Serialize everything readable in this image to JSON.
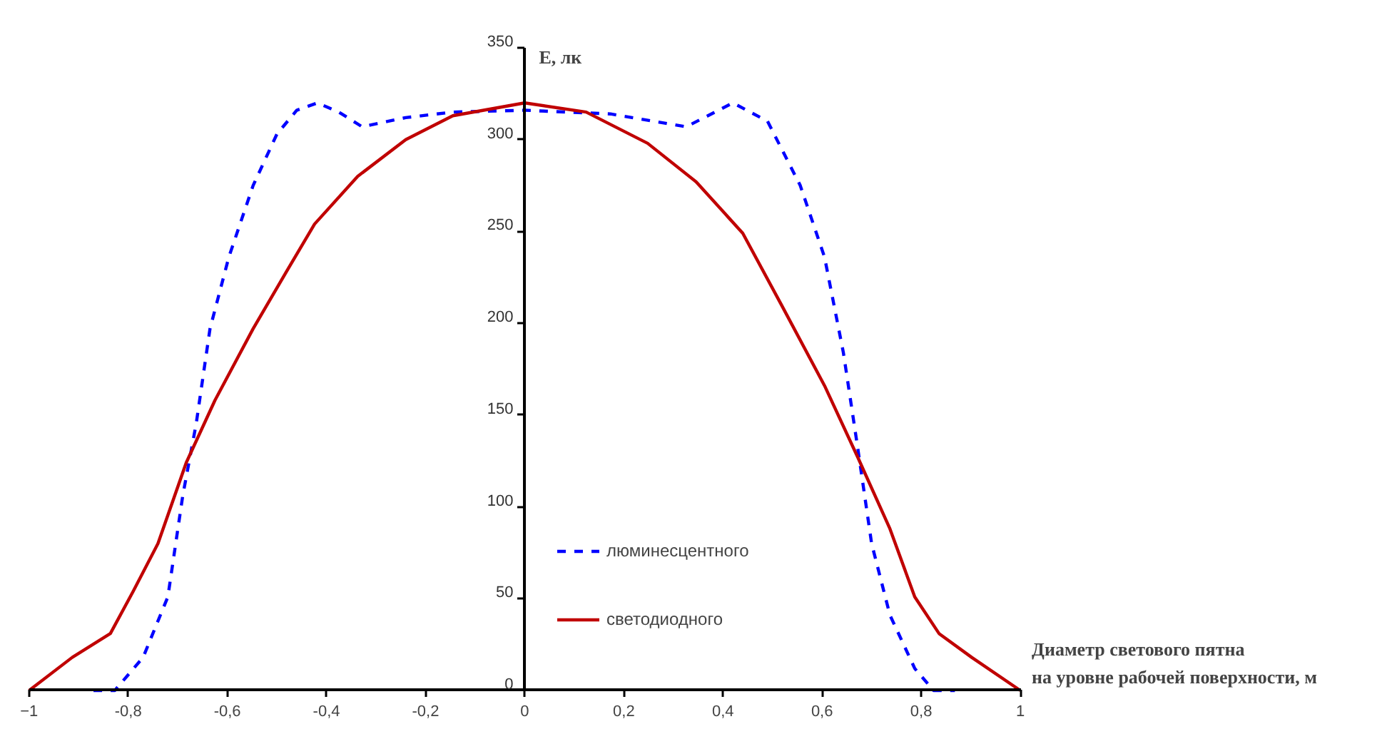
{
  "chart_data": {
    "type": "line",
    "xlabel": "Диаметр светового пятна\nна уровне рабочей поверхности, м",
    "ylabel": "Е, лк",
    "xlim": [
      -1,
      1
    ],
    "ylim": [
      0,
      350
    ],
    "xticks": [
      -1,
      {
        "value": -0.8,
        "label": "-0,8"
      },
      {
        "value": -0.6,
        "label": "-0,6"
      },
      {
        "value": -0.4,
        "label": "-0,4"
      },
      {
        "value": -0.2,
        "label": "-0,2"
      },
      0,
      {
        "value": 0.2,
        "label": "0,2"
      },
      {
        "value": 0.4,
        "label": "0,4"
      },
      {
        "value": 0.6,
        "label": "0,6"
      },
      {
        "value": 0.8,
        "label": "0,8"
      },
      1
    ],
    "yticks": [
      0,
      50,
      100,
      150,
      200,
      250,
      300,
      350
    ],
    "grid": false,
    "legend": "bottom",
    "series": [
      {
        "name": "люминесцентного",
        "color": "#0000ff",
        "line_style": "dashed",
        "x": [
          -0.87,
          -0.827,
          -0.77,
          -0.72,
          -0.69,
          -0.663,
          -0.635,
          -0.597,
          -0.548,
          -0.5,
          -0.46,
          -0.418,
          -0.375,
          -0.328,
          -0.24,
          -0.145,
          0,
          0.173,
          0.326,
          0.42,
          0.49,
          0.556,
          0.605,
          0.643,
          0.672,
          0.7,
          0.737,
          0.787,
          0.825,
          0.868
        ],
        "values": [
          0,
          0,
          18,
          51,
          106,
          145,
          197,
          236,
          275,
          303,
          316,
          320,
          315,
          307,
          312,
          315,
          316,
          314,
          307,
          320,
          310,
          275,
          236,
          184,
          132,
          80,
          41,
          12,
          0,
          0
        ]
      },
      {
        "name": "светодиодного",
        "color": "#c00000",
        "line_style": "solid",
        "x": [
          -1,
          -0.913,
          -0.836,
          -0.79,
          -0.74,
          -0.683,
          -0.625,
          -0.548,
          -0.481,
          -0.424,
          -0.337,
          -0.24,
          -0.145,
          0,
          0.124,
          0.248,
          0.346,
          0.44,
          0.518,
          0.605,
          0.672,
          0.737,
          0.787,
          0.836,
          0.902,
          1
        ],
        "values": [
          0,
          18,
          31,
          54,
          80,
          124,
          158,
          197,
          228,
          254,
          280,
          300,
          313,
          320,
          315,
          298,
          277,
          249,
          210,
          166,
          127,
          88,
          51,
          31,
          18,
          0
        ]
      }
    ]
  }
}
